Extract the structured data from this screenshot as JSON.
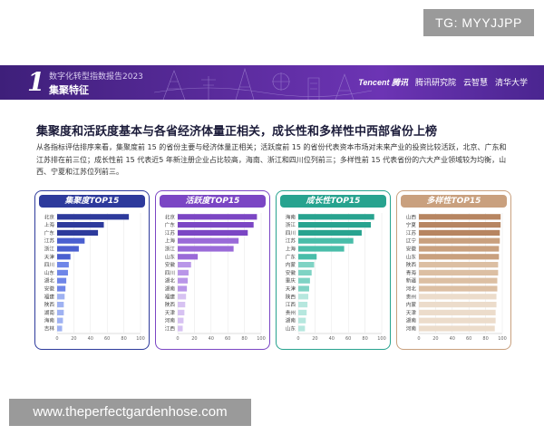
{
  "watermark_top": "TG: MYYJJPP",
  "watermark_bottom": "www.theperfectgardenhose.com",
  "banner": {
    "number": "1",
    "subtitle": "数字化转型指数报告2023",
    "title": "集聚特征",
    "logos": [
      "Tencent 腾讯",
      "腾讯研究院",
      "云智慧",
      "清华大学"
    ]
  },
  "headline": "集聚度和活跃度基本与各省经济体量正相关，成长性和多样性中西部省份上榜",
  "description": "从各指标评估排序来看，集聚度前 15 的省份主要与经济体量正相关；活跃度前 15 的省份代表资本市场对未来产业的投资比较活跃，北京、广东和江苏排在前三位；成长性前 15 代表近5 年新注册企业占比较高，海南、浙江和四川位列前三；多样性前 15 代表省份的六大产业领域较为均衡，山西、宁夏和江苏位列前三。",
  "colors": {
    "banner": "#5a2b9c",
    "p1": "#2d3a9c",
    "p2": "#7b46c4",
    "p3": "#27a38f",
    "p4": "#c9a07e"
  },
  "chart_data": [
    {
      "type": "bar",
      "orientation": "horizontal",
      "title": "集聚度TOP15",
      "categories": [
        "北京",
        "上海",
        "广东",
        "江苏",
        "浙江",
        "天津",
        "四川",
        "山东",
        "湖北",
        "安徽",
        "福建",
        "陕西",
        "湖南",
        "海南",
        "吉林"
      ],
      "values": [
        86,
        56,
        49,
        33,
        26,
        16,
        14,
        13,
        11,
        10,
        9,
        8,
        8,
        7,
        6
      ],
      "xlim": [
        0,
        100
      ],
      "xticks": [
        0,
        20,
        40,
        60,
        80,
        100
      ]
    },
    {
      "type": "bar",
      "orientation": "horizontal",
      "title": "活跃度TOP15",
      "categories": [
        "北京",
        "广东",
        "江苏",
        "上海",
        "浙江",
        "山东",
        "安徽",
        "四川",
        "湖北",
        "湖南",
        "福建",
        "陕西",
        "天津",
        "河南",
        "江西"
      ],
      "values": [
        95,
        91,
        84,
        73,
        67,
        24,
        16,
        13,
        12,
        11,
        10,
        9,
        8,
        7,
        6
      ],
      "xlim": [
        0,
        100
      ],
      "xticks": [
        0,
        20,
        40,
        60,
        80,
        100
      ]
    },
    {
      "type": "bar",
      "orientation": "horizontal",
      "title": "成长性TOP15",
      "categories": [
        "海南",
        "浙江",
        "四川",
        "江苏",
        "上海",
        "广东",
        "内蒙",
        "安徽",
        "重庆",
        "天津",
        "陕西",
        "江西",
        "贵州",
        "湖南",
        "山东"
      ],
      "values": [
        91,
        87,
        76,
        66,
        55,
        22,
        19,
        16,
        14,
        13,
        12,
        11,
        10,
        9,
        8
      ],
      "xlim": [
        0,
        100
      ],
      "xticks": [
        0,
        20,
        40,
        60,
        80,
        100
      ]
    },
    {
      "type": "bar",
      "orientation": "horizontal",
      "title": "多样性TOP15",
      "categories": [
        "山西",
        "宁夏",
        "江苏",
        "辽宁",
        "安徽",
        "山东",
        "陕西",
        "青海",
        "新疆",
        "河北",
        "贵州",
        "内蒙",
        "天津",
        "湖南",
        "河南"
      ],
      "values": [
        98,
        98,
        97,
        97,
        96,
        96,
        95,
        95,
        94,
        94,
        93,
        93,
        92,
        92,
        91
      ],
      "xlim": [
        0,
        100
      ],
      "xticks": [
        0,
        20,
        40,
        60,
        80,
        100
      ]
    }
  ]
}
